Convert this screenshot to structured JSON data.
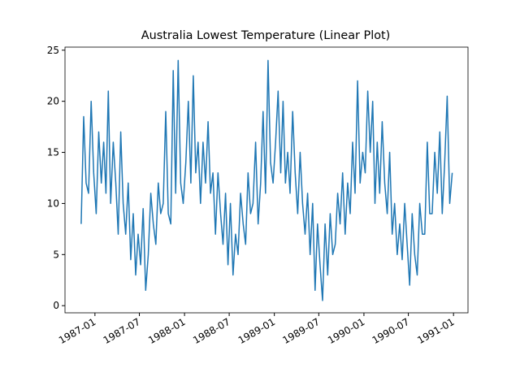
{
  "chart_data": {
    "type": "line",
    "title": "Australia Lowest Temperature (Linear Plot)",
    "x": [
      "1986-11",
      "1986-11",
      "1986-11",
      "1986-12",
      "1986-12",
      "1986-12",
      "1987-01",
      "1987-01",
      "1987-01",
      "1987-02",
      "1987-02",
      "1987-02",
      "1987-03",
      "1987-03",
      "1987-03",
      "1987-04",
      "1987-04",
      "1987-04",
      "1987-05",
      "1987-05",
      "1987-05",
      "1987-06",
      "1987-06",
      "1987-06",
      "1987-07",
      "1987-07",
      "1987-07",
      "1987-08",
      "1987-08",
      "1987-08",
      "1987-09",
      "1987-09",
      "1987-09",
      "1987-10",
      "1987-10",
      "1987-10",
      "1987-11",
      "1987-11",
      "1987-11",
      "1987-12",
      "1987-12",
      "1987-12",
      "1988-01",
      "1988-01",
      "1988-01",
      "1988-02",
      "1988-02",
      "1988-02",
      "1988-03",
      "1988-03",
      "1988-03",
      "1988-04",
      "1988-04",
      "1988-04",
      "1988-05",
      "1988-05",
      "1988-05",
      "1988-06",
      "1988-06",
      "1988-06",
      "1988-07",
      "1988-07",
      "1988-07",
      "1988-08",
      "1988-08",
      "1988-08",
      "1988-09",
      "1988-09",
      "1988-09",
      "1988-10",
      "1988-10",
      "1988-10",
      "1988-11",
      "1988-11",
      "1988-11",
      "1988-12",
      "1988-12",
      "1988-12",
      "1989-01",
      "1989-01",
      "1989-01",
      "1989-02",
      "1989-02",
      "1989-02",
      "1989-03",
      "1989-03",
      "1989-03",
      "1989-04",
      "1989-04",
      "1989-04",
      "1989-05",
      "1989-05",
      "1989-05",
      "1989-06",
      "1989-06",
      "1989-06",
      "1989-07",
      "1989-07",
      "1989-07",
      "1989-08",
      "1989-08",
      "1989-08",
      "1989-09",
      "1989-09",
      "1989-09",
      "1989-10",
      "1989-10",
      "1989-10",
      "1989-11",
      "1989-11",
      "1989-11",
      "1989-12",
      "1989-12",
      "1989-12",
      "1990-01",
      "1990-01",
      "1990-01",
      "1990-02",
      "1990-02",
      "1990-02",
      "1990-03",
      "1990-03",
      "1990-03",
      "1990-04",
      "1990-04",
      "1990-04",
      "1990-05",
      "1990-05",
      "1990-05",
      "1990-06",
      "1990-06",
      "1990-06",
      "1990-07",
      "1990-07",
      "1990-07",
      "1990-08",
      "1990-08",
      "1990-08",
      "1990-09",
      "1990-09",
      "1990-09",
      "1990-10",
      "1990-10",
      "1990-10",
      "1990-11",
      "1990-11",
      "1990-11",
      "1990-12",
      "1990-12",
      "1990-12"
    ],
    "series": [
      {
        "color": "#1f77b4",
        "values": [
          8,
          18.5,
          12,
          11,
          20,
          13,
          9,
          17,
          12,
          16,
          11,
          21,
          10,
          16,
          12,
          7,
          17,
          10,
          7,
          12,
          4.5,
          9,
          3,
          7,
          4,
          9.5,
          1.5,
          5,
          11,
          8,
          6,
          12,
          9,
          10,
          19,
          9,
          8,
          23,
          11,
          24,
          12,
          10,
          14,
          20,
          12,
          22.5,
          13,
          16,
          10,
          16,
          12,
          18,
          11,
          13,
          7,
          13,
          9,
          6,
          11,
          4,
          10,
          3,
          7,
          5,
          11,
          8,
          6,
          13,
          9,
          10,
          16,
          8,
          12,
          19,
          11,
          24,
          14,
          12,
          16,
          21,
          13,
          20,
          12,
          15,
          11,
          19,
          13,
          9,
          15,
          10,
          7,
          11,
          5,
          10,
          1.5,
          8,
          4,
          0.5,
          8,
          3,
          9,
          5,
          6,
          11,
          8,
          13,
          7,
          12,
          9,
          16,
          11,
          22,
          12,
          15,
          13,
          21,
          15,
          20,
          10,
          16,
          11,
          18,
          12,
          9,
          15,
          7,
          10,
          5,
          8,
          4.5,
          10,
          6,
          2,
          9,
          5,
          3,
          10,
          7,
          7,
          16,
          9,
          9,
          15,
          11,
          17,
          9,
          14,
          20.5,
          10,
          13
        ]
      }
    ],
    "xlim": [
      "1986-09",
      "1991-03"
    ],
    "xticks": [
      "1987-01",
      "1987-07",
      "1988-01",
      "1988-07",
      "1989-01",
      "1989-07",
      "1990-01",
      "1990-07",
      "1991-01"
    ],
    "ylim": [
      -0.7,
      25.3
    ],
    "yticks": [
      0,
      5,
      10,
      15,
      20,
      25
    ]
  }
}
